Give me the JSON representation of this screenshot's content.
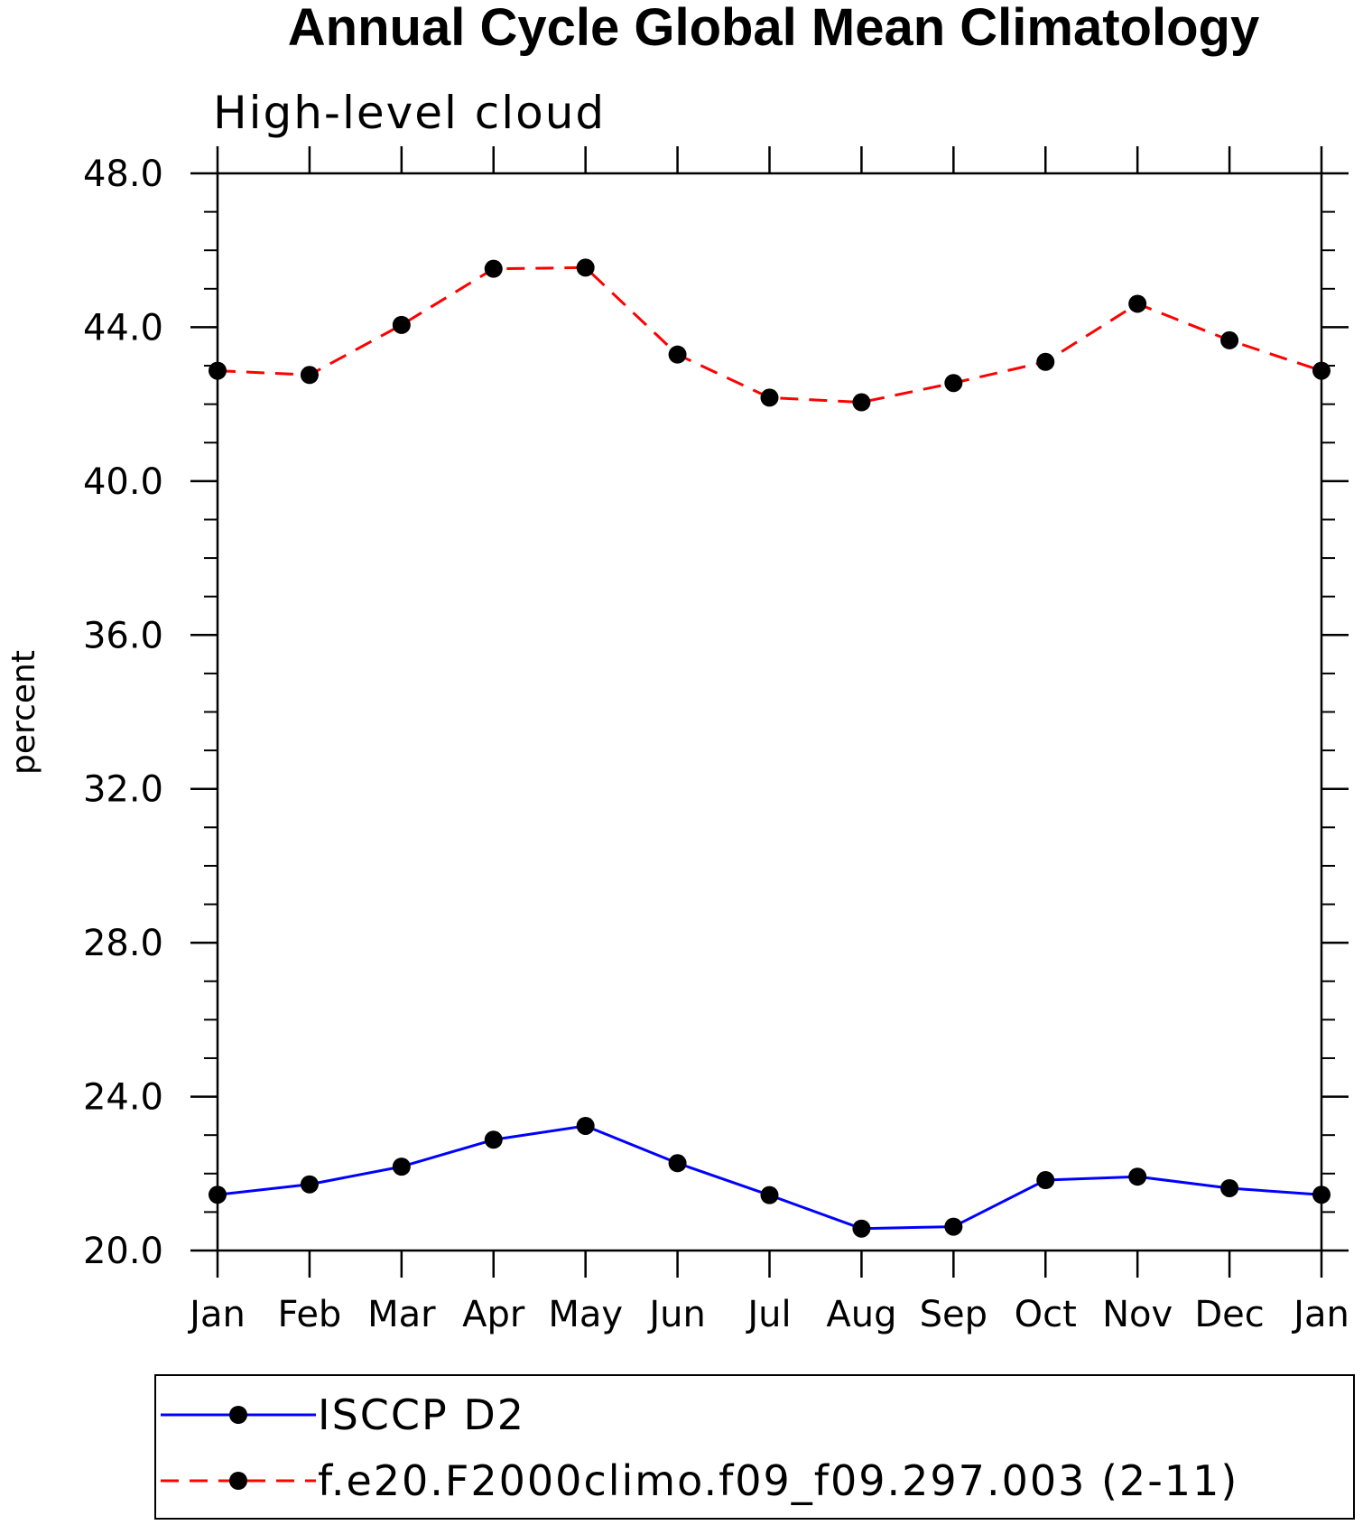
{
  "chart_data": {
    "type": "line",
    "title": "Annual Cycle Global Mean Climatology",
    "subtitle": "High-level cloud",
    "xlabel": "",
    "ylabel": "percent",
    "categories": [
      "Jan",
      "Feb",
      "Mar",
      "Apr",
      "May",
      "Jun",
      "Jul",
      "Aug",
      "Sep",
      "Oct",
      "Nov",
      "Dec",
      "Jan"
    ],
    "ylim": [
      20.0,
      48.0
    ],
    "yticks": [
      "20.0",
      "24.0",
      "28.0",
      "32.0",
      "36.0",
      "40.0",
      "44.0",
      "48.0"
    ],
    "grid": false,
    "legend_position": "bottom",
    "series": [
      {
        "name": "ISCCP D2",
        "color": "#0000ff",
        "dash": "solid",
        "marker": "circle",
        "values": [
          21.45,
          21.72,
          22.18,
          22.88,
          23.24,
          22.27,
          21.44,
          20.57,
          20.62,
          21.83,
          21.92,
          21.62,
          21.45
        ]
      },
      {
        "name": "f.e20.F2000climo.f09_f09.297.003 (2-11)",
        "color": "#ff0000",
        "dash": "dashed",
        "marker": "circle",
        "values": [
          42.87,
          42.76,
          44.06,
          45.52,
          45.55,
          43.29,
          42.17,
          42.05,
          42.55,
          43.1,
          44.61,
          43.66,
          42.87
        ]
      }
    ]
  }
}
